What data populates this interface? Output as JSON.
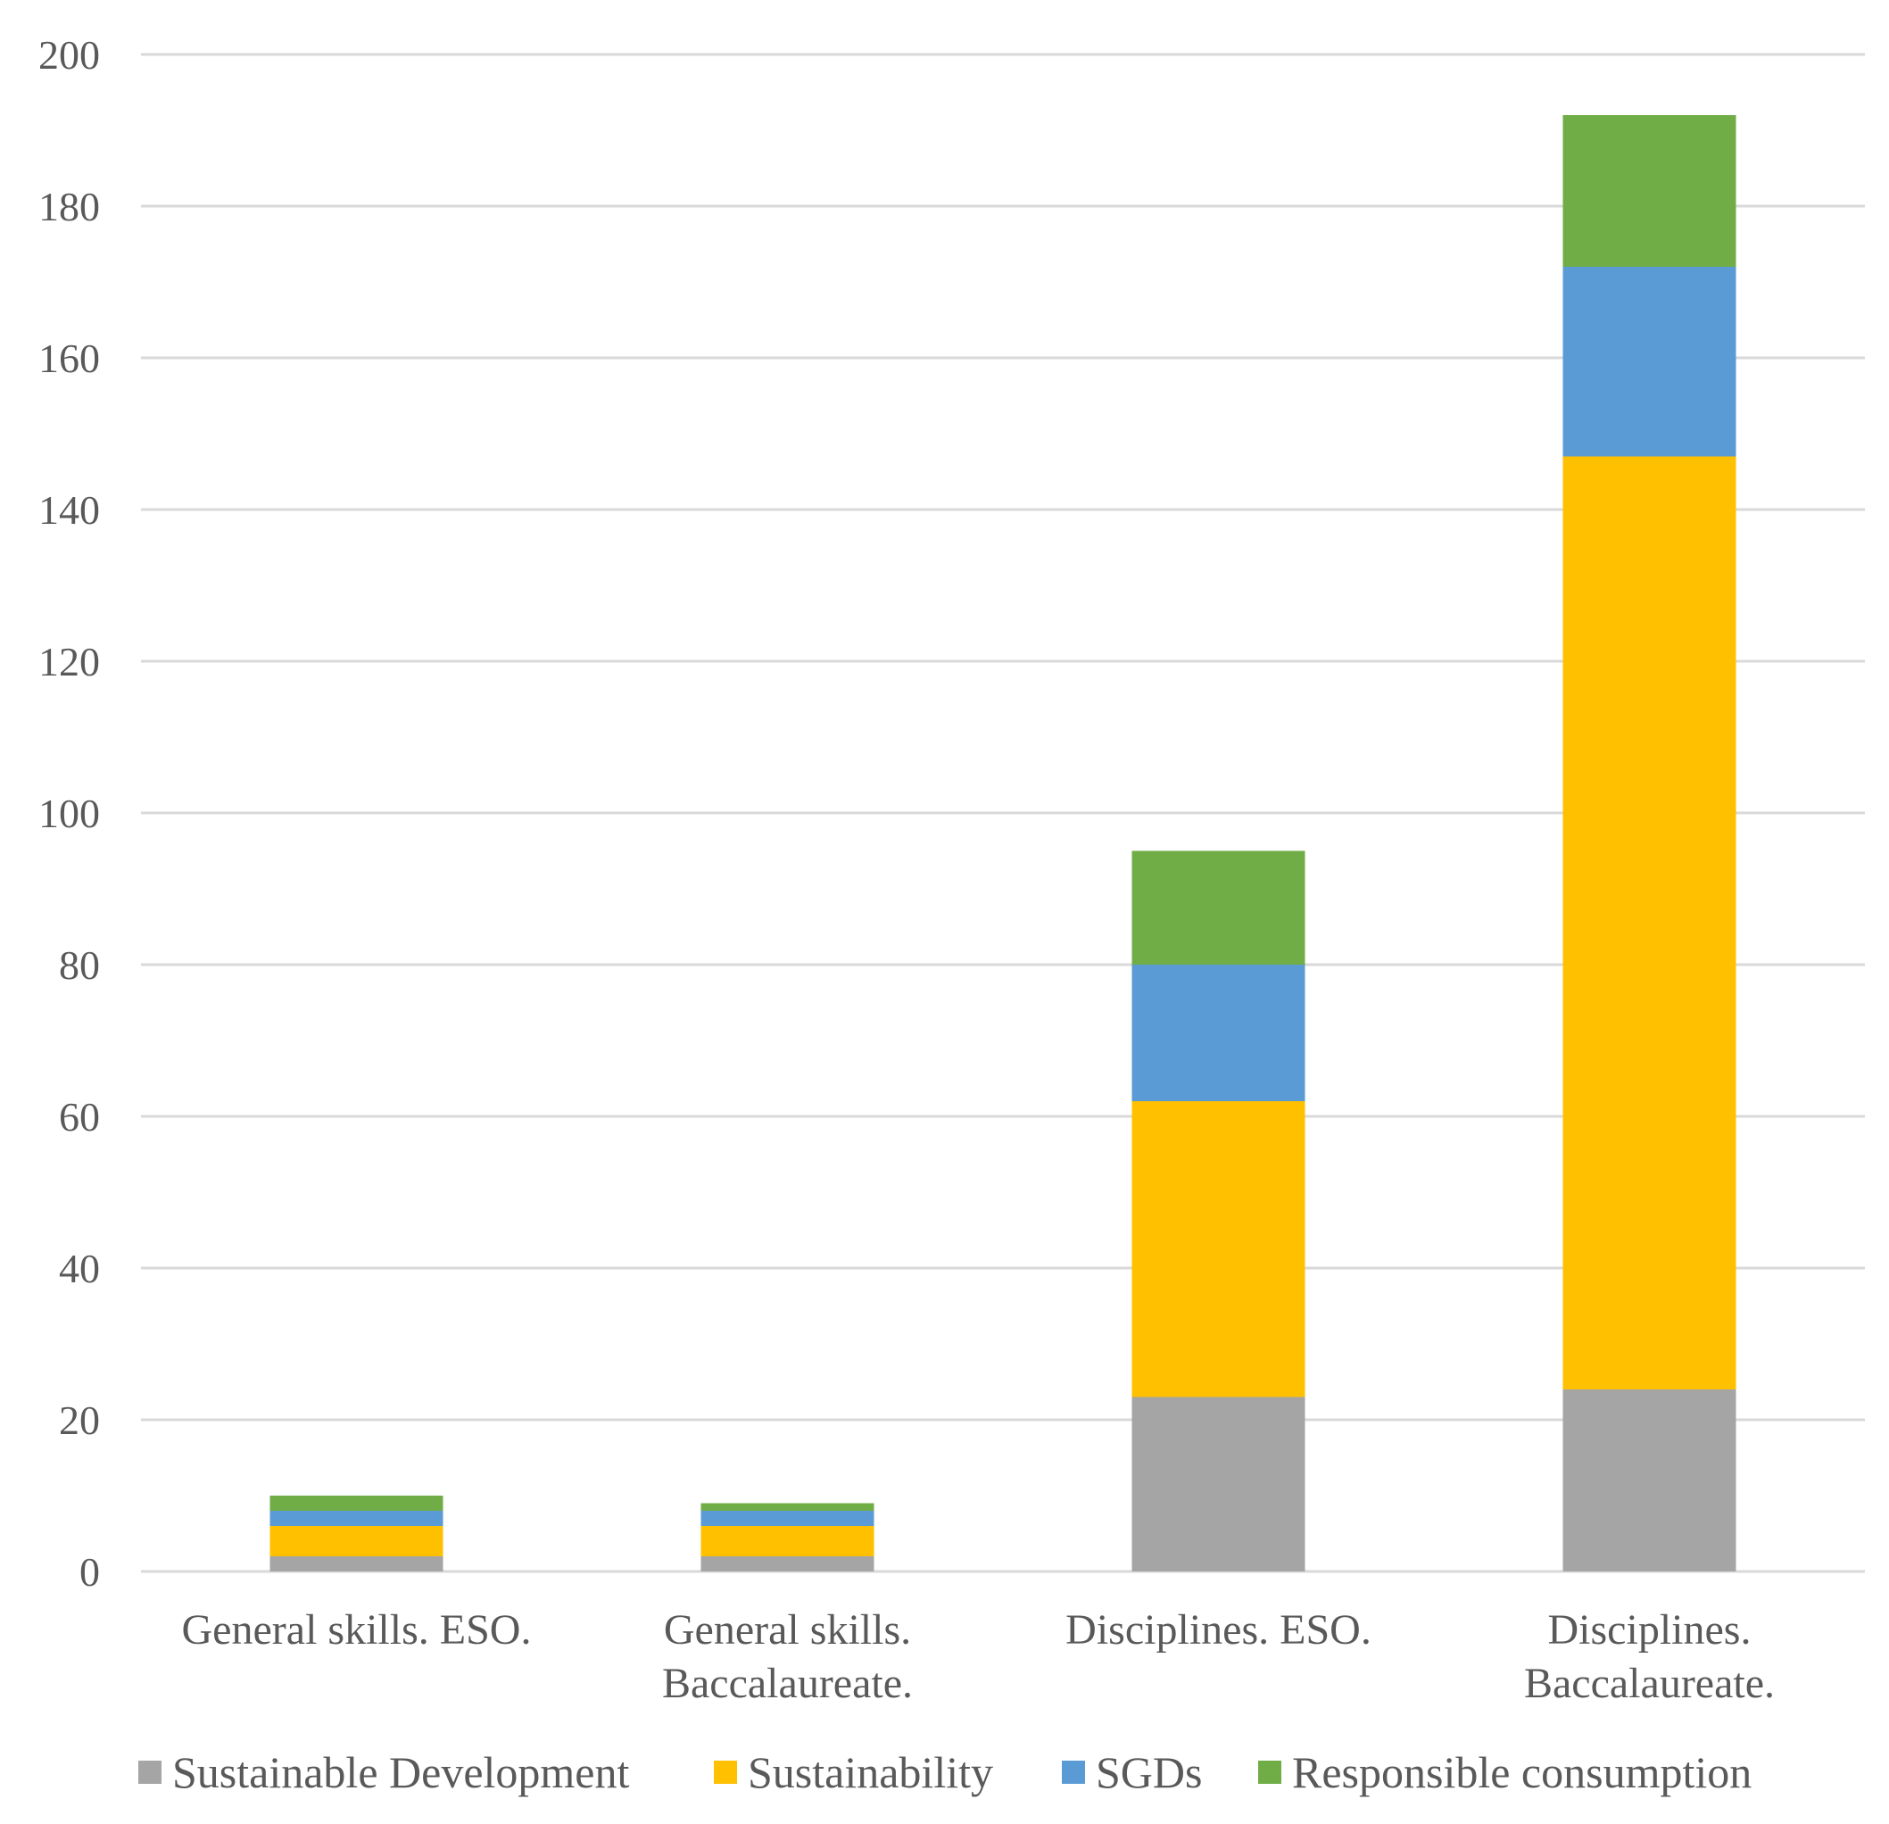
{
  "chart_data": {
    "type": "bar",
    "stacked": true,
    "title": "",
    "xlabel": "",
    "ylabel": "",
    "ylim": [
      0,
      200
    ],
    "yticks": [
      0,
      20,
      40,
      60,
      80,
      100,
      120,
      140,
      160,
      180,
      200
    ],
    "grid": true,
    "legend_position": "bottom",
    "categories": [
      [
        "General skills. ESO."
      ],
      [
        "General skills.",
        "Baccalaureate."
      ],
      [
        "Disciplines. ESO."
      ],
      [
        "Disciplines.",
        "Baccalaureate."
      ]
    ],
    "series": [
      {
        "name": "Sustainable Development",
        "color": "#a5a5a5",
        "values": [
          2,
          2,
          23,
          24
        ]
      },
      {
        "name": "Sustainability",
        "color": "#ffc000",
        "values": [
          4,
          4,
          39,
          123
        ]
      },
      {
        "name": "SGDs",
        "color": "#5b9bd5",
        "values": [
          2,
          2,
          18,
          25
        ]
      },
      {
        "name": "Responsible consumption",
        "color": "#70ad47",
        "values": [
          2,
          1,
          15,
          20
        ]
      }
    ]
  }
}
